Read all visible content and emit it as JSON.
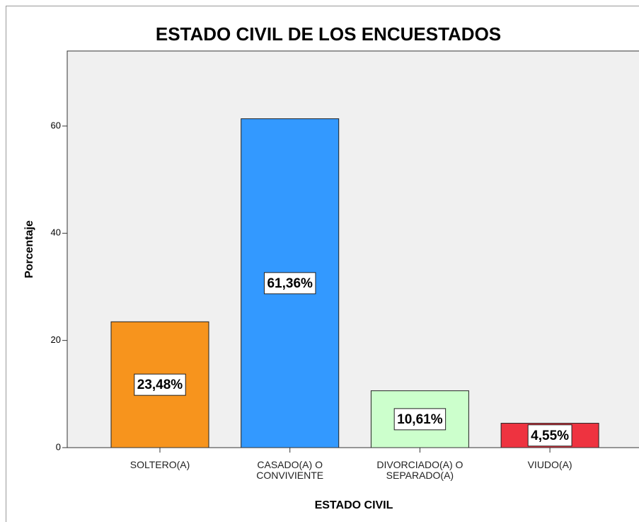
{
  "chart_data": {
    "type": "bar",
    "title": "ESTADO CIVIL DE LOS ENCUESTADOS",
    "x_label": "ESTADO CIVIL",
    "y_label": "Porcentaje",
    "categories": [
      "SOLTERO(A)",
      "CASADO(A) O CONVIVIENTE",
      "DIVORCIADO(A) O SEPARADO(A)",
      "VIUDO(A)"
    ],
    "values": [
      23.48,
      61.36,
      10.61,
      4.55
    ],
    "value_labels": [
      "23,48%",
      "61,36%",
      "10,61%",
      "4,55%"
    ],
    "colors": [
      "#f7941d",
      "#3399ff",
      "#ccffcc",
      "#ee3340"
    ],
    "ylim": [
      0,
      74
    ],
    "yticks": [
      0,
      20,
      40,
      60
    ],
    "grid": false
  }
}
